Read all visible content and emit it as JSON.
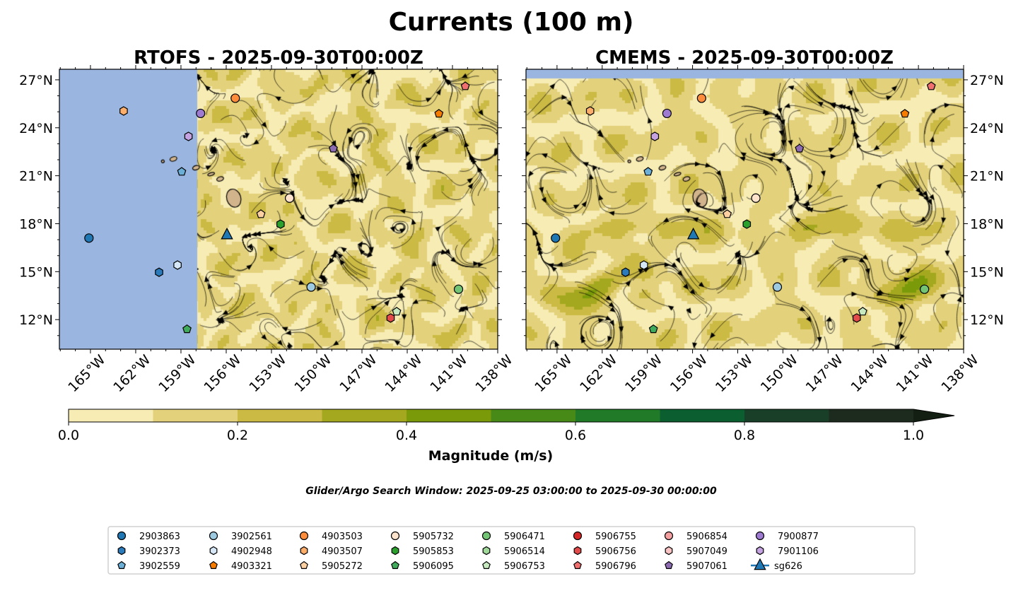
{
  "figure": {
    "title": "Currents (100 m)",
    "search_window": "Glider/Argo Search Window: 2025-09-25 03:00:00 to 2025-09-30 00:00:00"
  },
  "chart_data": {
    "type": "map",
    "panels": [
      {
        "title": "RTOFS - 2025-09-30T00:00Z",
        "model": "RTOFS",
        "lat_labels_side": "left"
      },
      {
        "title": "CMEMS - 2025-09-30T00:00Z",
        "model": "CMEMS",
        "lat_labels_side": "right"
      }
    ],
    "lon_range": [
      -167.06,
      -138
    ],
    "lat_range": [
      10.15,
      27.66
    ],
    "lon_ticks": [
      -165,
      -162,
      -159,
      -156,
      -153,
      -150,
      -147,
      -144,
      -141,
      -138
    ],
    "lon_tick_labels": [
      "165°W",
      "162°W",
      "159°W",
      "156°W",
      "153°W",
      "150°W",
      "147°W",
      "144°W",
      "141°W",
      "138°W"
    ],
    "lat_ticks": [
      12,
      15,
      18,
      21,
      24,
      27
    ],
    "lat_tick_labels": [
      "12°N",
      "15°N",
      "18°N",
      "21°N",
      "24°N",
      "27°N"
    ],
    "colorbar": {
      "label": "Magnitude (m/s)",
      "range": [
        0,
        1.0
      ],
      "levels": [
        0,
        0.1,
        0.2,
        0.3,
        0.4,
        0.5,
        0.6,
        0.7,
        0.8,
        0.9,
        1.0
      ],
      "colors": [
        "#f6ecb4",
        "#e3d27b",
        "#cbba44",
        "#a4a81e",
        "#7a9a0a",
        "#488a18",
        "#217a28",
        "#0b5e30",
        "#193f28",
        "#1c2b1e"
      ],
      "extend_color": "#141f14",
      "ticks": [
        0.0,
        0.2,
        0.4,
        0.6,
        0.8,
        1.0
      ],
      "tick_labels": [
        "0.0",
        "0.2",
        "0.4",
        "0.6",
        "0.8",
        "1.0"
      ]
    },
    "platforms": [
      {
        "id": "2903863",
        "marker": "circle",
        "color": "#1f77b4",
        "lon": -165.1,
        "lat": 17.1,
        "visible": true
      },
      {
        "id": "3902373",
        "marker": "hexagon",
        "color": "#2b7bba",
        "lon": -160.45,
        "lat": 14.96,
        "visible": true
      },
      {
        "id": "3902559",
        "marker": "pentagon",
        "color": "#6baed6",
        "lon": -158.95,
        "lat": 21.25,
        "visible": true
      },
      {
        "id": "3902561",
        "marker": "circle",
        "color": "#9ecae1",
        "lon": -150.37,
        "lat": 14.04,
        "visible": true
      },
      {
        "id": "4902948",
        "marker": "hexagon",
        "color": "#d6e8f7",
        "lon": -159.23,
        "lat": 15.41,
        "visible": true
      },
      {
        "id": "4903321",
        "marker": "pentagon",
        "color": "#f57c00",
        "lon": -141.9,
        "lat": 24.88,
        "visible": true
      },
      {
        "id": "4903503",
        "marker": "circle",
        "color": "#fd8d3c",
        "lon": -155.4,
        "lat": 25.85,
        "visible": true
      },
      {
        "id": "4903507",
        "marker": "hexagon",
        "color": "#fdae6b",
        "lon": -162.8,
        "lat": 25.05,
        "visible": true
      },
      {
        "id": "5905272",
        "marker": "pentagon",
        "color": "#fdd0a2",
        "lon": -153.7,
        "lat": 18.6,
        "visible": true
      },
      {
        "id": "5905732",
        "marker": "circle",
        "color": "#fee3cc",
        "lon": -151.8,
        "lat": 19.6,
        "visible": true
      },
      {
        "id": "5905853",
        "marker": "hexagon",
        "color": "#2ca02c",
        "lon": -152.4,
        "lat": 17.97,
        "visible": true
      },
      {
        "id": "5906095",
        "marker": "pentagon",
        "color": "#41ab5d",
        "lon": -158.6,
        "lat": 11.4,
        "visible": true
      },
      {
        "id": "5906471",
        "marker": "circle",
        "color": "#74c476",
        "lon": -140.6,
        "lat": 13.9,
        "visible": true
      },
      {
        "id": "5906514",
        "marker": "hexagon",
        "color": "#a1d99b",
        "lon": null,
        "lat": null,
        "visible": false
      },
      {
        "id": "5906753",
        "marker": "pentagon",
        "color": "#c7e9c0",
        "lon": -144.7,
        "lat": 12.5,
        "visible": true
      },
      {
        "id": "5906755",
        "marker": "circle",
        "color": "#d62728",
        "lon": null,
        "lat": null,
        "visible": false
      },
      {
        "id": "5906756",
        "marker": "hexagon",
        "color": "#e34a4a",
        "lon": -145.1,
        "lat": 12.1,
        "visible": true
      },
      {
        "id": "5906796",
        "marker": "pentagon",
        "color": "#f07070",
        "lon": -140.15,
        "lat": 26.6,
        "visible": true
      },
      {
        "id": "5906854",
        "marker": "circle",
        "color": "#f4a0a0",
        "lon": null,
        "lat": null,
        "visible": false
      },
      {
        "id": "5907049",
        "marker": "hexagon",
        "color": "#fbc4c4",
        "lon": null,
        "lat": null,
        "visible": false
      },
      {
        "id": "5907061",
        "marker": "pentagon",
        "color": "#8c6bb1",
        "lon": -148.9,
        "lat": 22.7,
        "visible": true
      },
      {
        "id": "7900877",
        "marker": "circle",
        "color": "#9e7bd0",
        "lon": -157.7,
        "lat": 24.9,
        "visible": true
      },
      {
        "id": "7901106",
        "marker": "hexagon",
        "color": "#c4a3e0",
        "lon": -158.5,
        "lat": 23.46,
        "visible": true
      },
      {
        "id": "sg626",
        "marker": "triangle",
        "color": "#1f77b4",
        "lon": -155.95,
        "lat": 17.3,
        "visible": true
      }
    ]
  }
}
